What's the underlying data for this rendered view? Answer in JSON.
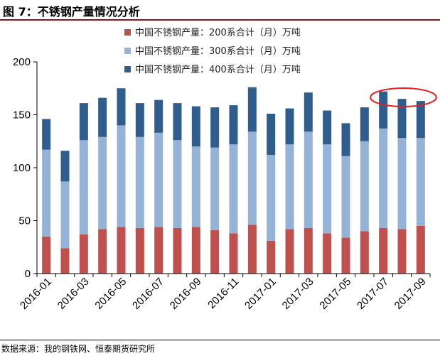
{
  "figure": {
    "title": "图 7：不锈钢产量情况分析",
    "source": "数据来源：我的钢铁网、恒泰期货研究所"
  },
  "colors": {
    "series_200": "#C0504D",
    "series_300": "#95B3D7",
    "series_400": "#2F5E8E",
    "highlight_ellipse": "#E02020",
    "title_rule": "#8B1A1A"
  },
  "chart_data": {
    "type": "bar",
    "stacked": true,
    "categories": [
      "2016-01",
      "2016-02",
      "2016-03",
      "2016-04",
      "2016-05",
      "2016-06",
      "2016-07",
      "2016-08",
      "2016-09",
      "2016-10",
      "2016-11",
      "2016-12",
      "2017-01",
      "2017-02",
      "2017-03",
      "2017-04",
      "2017-05",
      "2017-06",
      "2017-07",
      "2017-08",
      "2017-09"
    ],
    "x_tick_labels": [
      "2016-01",
      "2016-03",
      "2016-05",
      "2016-07",
      "2016-09",
      "2016-11",
      "2017-01",
      "2017-03",
      "2017-05",
      "2017-07",
      "2017-09"
    ],
    "series": [
      {
        "name": "中国不锈钢产量：200系合计（月）万吨",
        "values": [
          35,
          24,
          37,
          42,
          44,
          43,
          44,
          43,
          44,
          41,
          38,
          46,
          31,
          42,
          43,
          38,
          34,
          40,
          43,
          42,
          45
        ]
      },
      {
        "name": "中国不锈钢产量：300系合计（月）万吨",
        "values": [
          82,
          63,
          89,
          87,
          96,
          86,
          89,
          83,
          76,
          78,
          84,
          88,
          81,
          80,
          91,
          84,
          77,
          85,
          94,
          86,
          83
        ]
      },
      {
        "name": "中国不锈钢产量：400系合计（月）万吨",
        "values": [
          29,
          29,
          35,
          37,
          35,
          32,
          31,
          35,
          38,
          38,
          37,
          42,
          39,
          34,
          37,
          32,
          31,
          32,
          35,
          37,
          35
        ]
      }
    ],
    "ylim": [
      0,
      200
    ],
    "yticks": [
      0,
      50,
      100,
      150,
      200
    ],
    "grid": false,
    "legend_position": "top",
    "annotation": "red ellipse around the 2017-07 to 2017-09 bar tops"
  }
}
